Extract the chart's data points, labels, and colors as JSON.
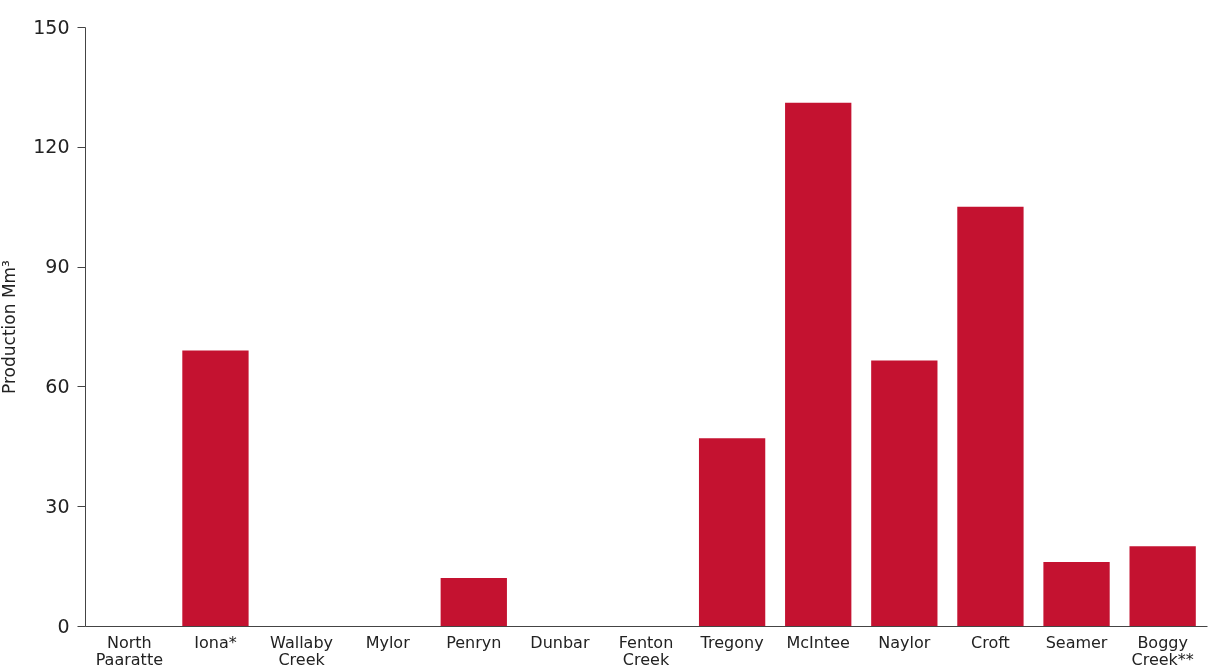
{
  "chart_data": {
    "type": "bar",
    "ylabel": "Production Mm³",
    "categories": [
      "North Paaratte",
      "Iona*",
      "Wallaby Creek",
      "Mylor",
      "Penryn",
      "Dunbar",
      "Fenton Creek",
      "Tregony",
      "McIntee",
      "Naylor",
      "Croft",
      "Seamer",
      "Boggy Creek**"
    ],
    "values": [
      0,
      69,
      0,
      0,
      12,
      0,
      0,
      47,
      131,
      66.5,
      105,
      16,
      20
    ],
    "color": "#c41230",
    "ylim": [
      0,
      150
    ],
    "yticks": [
      0,
      30,
      60,
      90,
      120,
      150
    ],
    "grid": false
  }
}
